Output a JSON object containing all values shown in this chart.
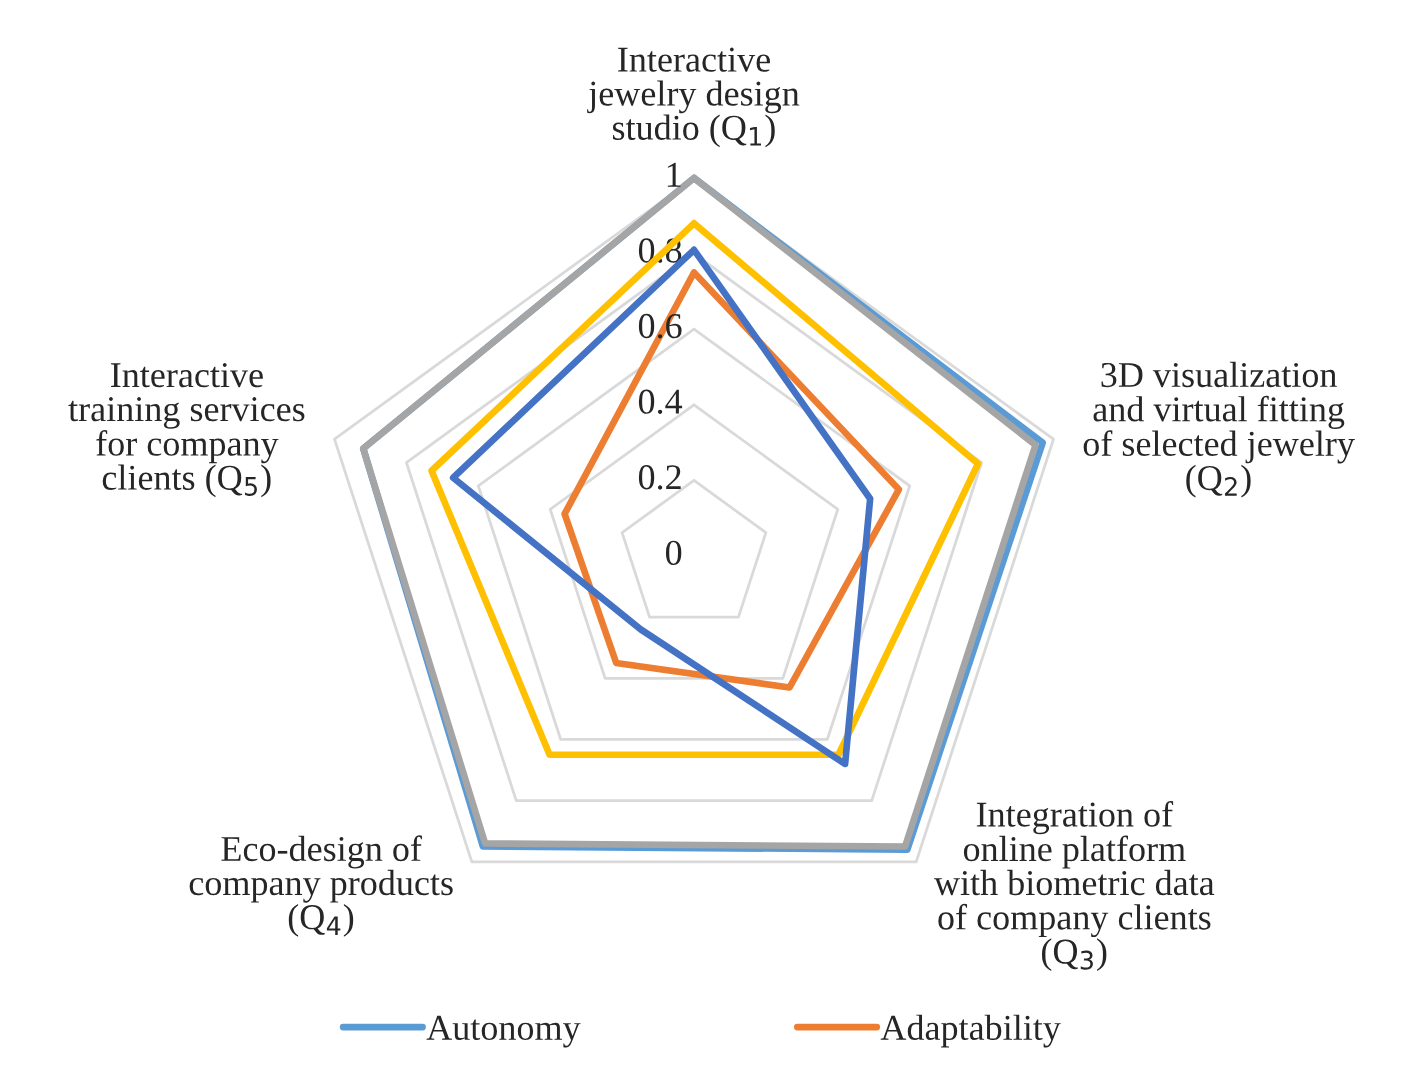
{
  "chart_data": {
    "type": "radar",
    "categories": [
      "Interactive\njewelry design\nstudio (Q$_{1}$)",
      "3D visualization\nand virtual fitting\nof selected jewelry\n(Q$_{2}$)",
      "Integration of\nonline platform\nwith biometric data\nof company clients\n(Q$_{3}$)",
      "Eco-design of\ncompany products\n(Q$_{4}$)",
      "Interactive\ntraining services\nfor company\nclients (Q$_{5}$)"
    ],
    "series": [
      {
        "name": "Autonomy",
        "color": "#5b9bd5",
        "values": [
          1.0,
          0.97,
          0.96,
          0.95,
          0.92
        ]
      },
      {
        "name": "Adaptability",
        "color": "#ed7d31",
        "values": [
          0.75,
          0.57,
          0.43,
          0.35,
          0.36
        ]
      },
      {
        "color": "#a5a5a5",
        "values": [
          1.0,
          0.95,
          0.95,
          0.94,
          0.92
        ]
      },
      {
        "color": "#ffc000",
        "values": [
          0.88,
          0.79,
          0.65,
          0.65,
          0.73
        ]
      },
      {
        "color": "#4472c4",
        "values": [
          0.81,
          0.49,
          0.68,
          0.24,
          0.67
        ]
      }
    ],
    "ylim": [
      0,
      1
    ],
    "yticks": [
      0,
      0.2,
      0.4,
      0.6,
      0.8,
      1
    ],
    "grid": true,
    "legend": "bottom"
  }
}
